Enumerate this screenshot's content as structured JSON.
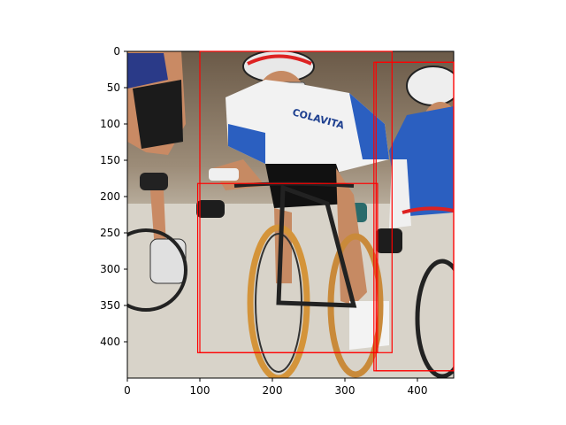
{
  "figure": {
    "image_extent": {
      "x": [
        0,
        450
      ],
      "y": [
        0,
        450
      ]
    },
    "x_ticks": [
      0,
      100,
      200,
      300,
      400
    ],
    "y_ticks": [
      0,
      50,
      100,
      150,
      200,
      250,
      300,
      350,
      400
    ],
    "box_color": "#ff0000",
    "jersey_text": "COLAVITA"
  },
  "boxes": [
    {
      "x1": 97,
      "y1": 182,
      "x2": 345,
      "y2": 415
    },
    {
      "x1": 100,
      "y1": 0,
      "x2": 365,
      "y2": 415
    },
    {
      "x1": 340,
      "y1": 15,
      "x2": 450,
      "y2": 440
    },
    {
      "x1": 343,
      "y1": 15,
      "x2": 450,
      "y2": 440
    }
  ]
}
